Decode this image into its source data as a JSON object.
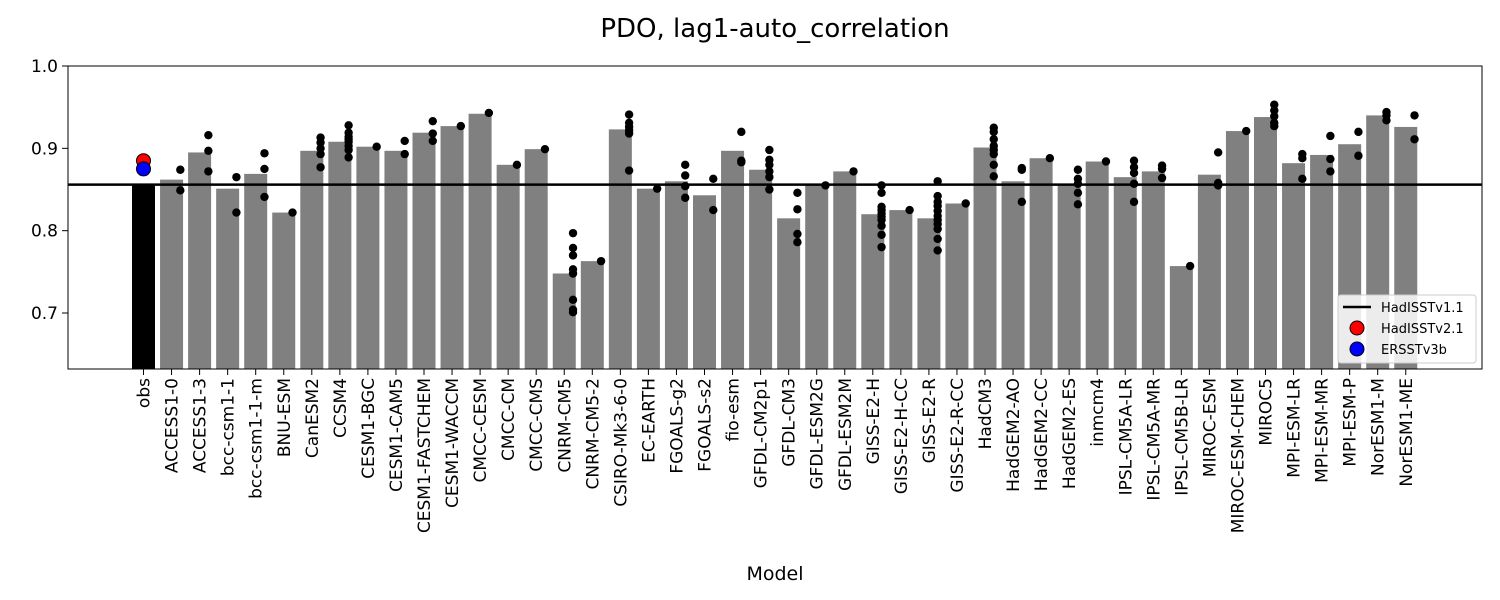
{
  "chart_data": {
    "type": "bar",
    "title": "PDO, lag1-auto_correlation",
    "xlabel": "Model",
    "ylabel": "",
    "ylim": [
      0.632,
      1.0
    ],
    "yticks": [
      0.7,
      0.8,
      0.9,
      1.0
    ],
    "ytick_labels": [
      "0.7",
      "0.8",
      "0.9",
      "1.0"
    ],
    "grid": false,
    "legend_position": "lower-right",
    "categories": [
      "obs",
      "ACCESS1-0",
      "ACCESS1-3",
      "bcc-csm1-1",
      "bcc-csm1-1-m",
      "BNU-ESM",
      "CanESM2",
      "CCSM4",
      "CESM1-BGC",
      "CESM1-CAM5",
      "CESM1-FASTCHEM",
      "CESM1-WACCM",
      "CMCC-CESM",
      "CMCC-CM",
      "CMCC-CMS",
      "CNRM-CM5",
      "CNRM-CM5-2",
      "CSIRO-Mk3-6-0",
      "EC-EARTH",
      "FGOALS-g2",
      "FGOALS-s2",
      "fio-esm",
      "GFDL-CM2p1",
      "GFDL-CM3",
      "GFDL-ESM2G",
      "GFDL-ESM2M",
      "GISS-E2-H",
      "GISS-E2-H-CC",
      "GISS-E2-R",
      "GISS-E2-R-CC",
      "HadCM3",
      "HadGEM2-AO",
      "HadGEM2-CC",
      "HadGEM2-ES",
      "inmcm4",
      "IPSL-CM5A-LR",
      "IPSL-CM5A-MR",
      "IPSL-CM5B-LR",
      "MIROC-ESM",
      "MIROC-ESM-CHEM",
      "MIROC5",
      "MPI-ESM-LR",
      "MPI-ESM-MR",
      "MPI-ESM-P",
      "NorESM1-M",
      "NorESM1-ME"
    ],
    "series": [
      {
        "name": "",
        "type": "bar",
        "values": [
          0.856,
          0.862,
          0.895,
          0.851,
          0.869,
          0.822,
          0.897,
          0.908,
          0.902,
          0.897,
          0.919,
          0.927,
          0.942,
          0.88,
          0.899,
          0.748,
          0.763,
          0.923,
          0.851,
          0.86,
          0.843,
          0.897,
          0.874,
          0.815,
          0.855,
          0.872,
          0.82,
          0.825,
          0.815,
          0.833,
          0.901,
          0.86,
          0.888,
          0.856,
          0.884,
          0.865,
          0.872,
          0.757,
          0.868,
          0.921,
          0.938,
          0.882,
          0.892,
          0.905,
          0.94,
          0.926
        ],
        "colors": [
          "#000000",
          "#808080"
        ]
      },
      {
        "name": "",
        "type": "scatter",
        "points": [
          [
            1,
            0.874
          ],
          [
            1,
            0.849
          ],
          [
            2,
            0.916
          ],
          [
            2,
            0.897
          ],
          [
            2,
            0.872
          ],
          [
            3,
            0.865
          ],
          [
            3,
            0.822
          ],
          [
            4,
            0.894
          ],
          [
            4,
            0.875
          ],
          [
            4,
            0.841
          ],
          [
            5,
            0.822
          ],
          [
            6,
            0.913
          ],
          [
            6,
            0.907
          ],
          [
            6,
            0.9
          ],
          [
            6,
            0.893
          ],
          [
            6,
            0.877
          ],
          [
            7,
            0.928
          ],
          [
            7,
            0.919
          ],
          [
            7,
            0.914
          ],
          [
            7,
            0.911
          ],
          [
            7,
            0.908
          ],
          [
            7,
            0.903
          ],
          [
            7,
            0.898
          ],
          [
            7,
            0.889
          ],
          [
            8,
            0.902
          ],
          [
            9,
            0.909
          ],
          [
            9,
            0.893
          ],
          [
            10,
            0.933
          ],
          [
            10,
            0.918
          ],
          [
            10,
            0.909
          ],
          [
            11,
            0.927
          ],
          [
            12,
            0.943
          ],
          [
            13,
            0.88
          ],
          [
            14,
            0.899
          ],
          [
            15,
            0.797
          ],
          [
            15,
            0.779
          ],
          [
            15,
            0.77
          ],
          [
            15,
            0.753
          ],
          [
            15,
            0.748
          ],
          [
            15,
            0.716
          ],
          [
            15,
            0.704
          ],
          [
            15,
            0.701
          ],
          [
            16,
            0.763
          ],
          [
            17,
            0.941
          ],
          [
            17,
            0.931
          ],
          [
            17,
            0.926
          ],
          [
            17,
            0.922
          ],
          [
            17,
            0.918
          ],
          [
            17,
            0.873
          ],
          [
            18,
            0.851
          ],
          [
            19,
            0.88
          ],
          [
            19,
            0.867
          ],
          [
            19,
            0.854
          ],
          [
            19,
            0.84
          ],
          [
            20,
            0.863
          ],
          [
            20,
            0.825
          ],
          [
            21,
            0.92
          ],
          [
            21,
            0.885
          ],
          [
            21,
            0.883
          ],
          [
            22,
            0.898
          ],
          [
            22,
            0.886
          ],
          [
            22,
            0.88
          ],
          [
            22,
            0.872
          ],
          [
            22,
            0.865
          ],
          [
            22,
            0.85
          ],
          [
            23,
            0.846
          ],
          [
            23,
            0.826
          ],
          [
            23,
            0.796
          ],
          [
            23,
            0.786
          ],
          [
            24,
            0.855
          ],
          [
            25,
            0.872
          ],
          [
            26,
            0.855
          ],
          [
            26,
            0.846
          ],
          [
            26,
            0.829
          ],
          [
            26,
            0.825
          ],
          [
            26,
            0.821
          ],
          [
            26,
            0.817
          ],
          [
            26,
            0.813
          ],
          [
            26,
            0.806
          ],
          [
            26,
            0.795
          ],
          [
            26,
            0.78
          ],
          [
            27,
            0.825
          ],
          [
            28,
            0.86
          ],
          [
            28,
            0.842
          ],
          [
            28,
            0.835
          ],
          [
            28,
            0.83
          ],
          [
            28,
            0.824
          ],
          [
            28,
            0.818
          ],
          [
            28,
            0.813
          ],
          [
            28,
            0.808
          ],
          [
            28,
            0.802
          ],
          [
            28,
            0.79
          ],
          [
            28,
            0.776
          ],
          [
            29,
            0.833
          ],
          [
            30,
            0.925
          ],
          [
            30,
            0.92
          ],
          [
            30,
            0.911
          ],
          [
            30,
            0.903
          ],
          [
            30,
            0.898
          ],
          [
            30,
            0.893
          ],
          [
            30,
            0.88
          ],
          [
            30,
            0.866
          ],
          [
            31,
            0.876
          ],
          [
            31,
            0.874
          ],
          [
            31,
            0.835
          ],
          [
            32,
            0.888
          ],
          [
            33,
            0.874
          ],
          [
            33,
            0.863
          ],
          [
            33,
            0.857
          ],
          [
            33,
            0.846
          ],
          [
            33,
            0.832
          ],
          [
            34,
            0.884
          ],
          [
            35,
            0.885
          ],
          [
            35,
            0.877
          ],
          [
            35,
            0.87
          ],
          [
            35,
            0.857
          ],
          [
            35,
            0.835
          ],
          [
            36,
            0.879
          ],
          [
            36,
            0.875
          ],
          [
            36,
            0.864
          ],
          [
            37,
            0.757
          ],
          [
            38,
            0.895
          ],
          [
            38,
            0.858
          ],
          [
            38,
            0.855
          ],
          [
            39,
            0.921
          ],
          [
            40,
            0.953
          ],
          [
            40,
            0.946
          ],
          [
            40,
            0.939
          ],
          [
            40,
            0.931
          ],
          [
            40,
            0.927
          ],
          [
            41,
            0.893
          ],
          [
            41,
            0.888
          ],
          [
            41,
            0.863
          ],
          [
            42,
            0.915
          ],
          [
            42,
            0.887
          ],
          [
            42,
            0.872
          ],
          [
            43,
            0.92
          ],
          [
            43,
            0.891
          ],
          [
            44,
            0.944
          ],
          [
            44,
            0.94
          ],
          [
            44,
            0.934
          ],
          [
            45,
            0.94
          ],
          [
            45,
            0.911
          ]
        ],
        "color": "#000000"
      },
      {
        "name": "HadISSTv1.1",
        "type": "hline",
        "value": 0.856,
        "color": "#000000"
      },
      {
        "name": "HadISSTv2.1",
        "type": "marker",
        "category_index": 0,
        "value": 0.885,
        "color": "#ff0000"
      },
      {
        "name": "ERSSTv3b",
        "type": "marker",
        "category_index": 0,
        "value": 0.875,
        "color": "#0000ff"
      }
    ]
  }
}
